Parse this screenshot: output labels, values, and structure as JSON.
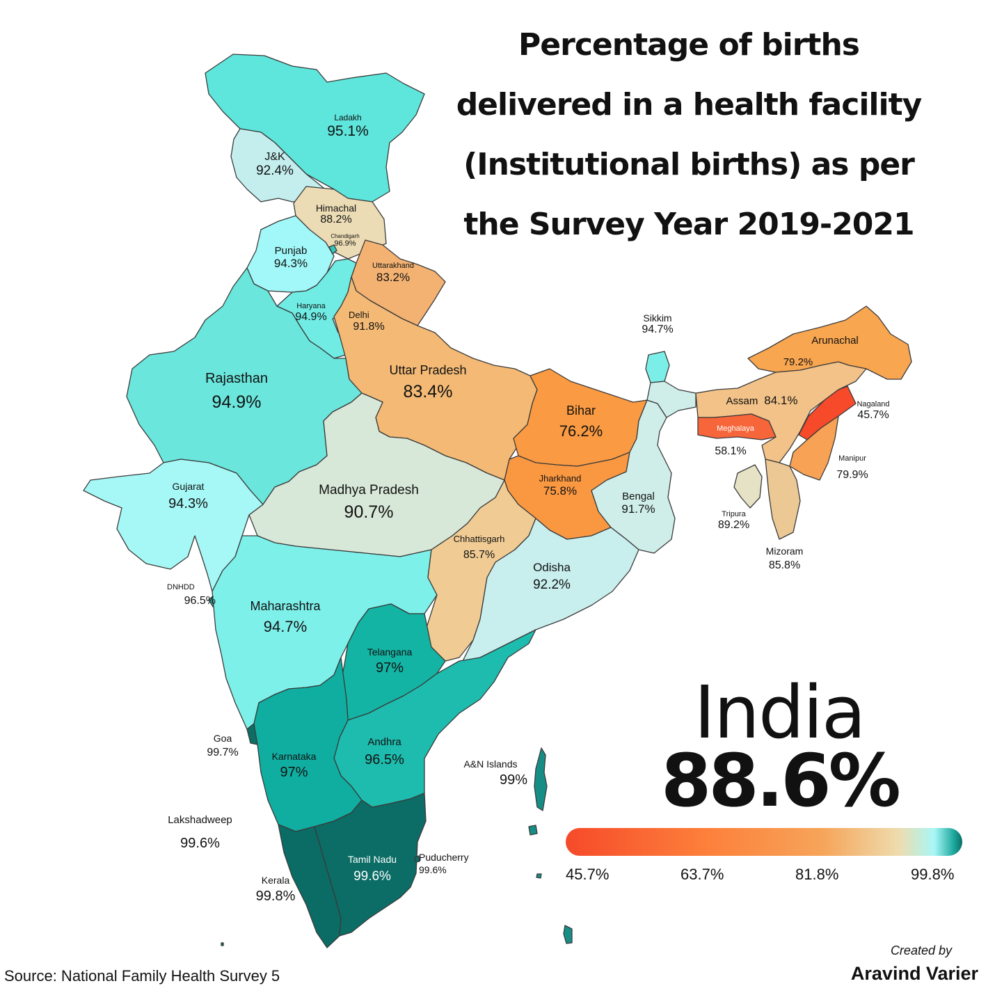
{
  "title_lines": [
    "Percentage of births",
    "delivered in a health facility",
    "(Institutional births) as per",
    "the Survey Year 2019-2021"
  ],
  "national": {
    "name": "India",
    "value": "88.6%"
  },
  "legend": {
    "ticks": [
      "45.7%",
      "63.7%",
      "81.8%",
      "99.8%"
    ],
    "colors": [
      "#f64a2a",
      "#fd7f3a",
      "#f6a55a",
      "#eedcae",
      "#a8f7f7",
      "#1aa59a",
      "#0b6d64"
    ]
  },
  "source": "Source: National Family Health Survey 5",
  "credit": {
    "line1": "Created by",
    "line2": "Aravind Varier"
  },
  "regions": {
    "ladakh": {
      "name": "Ladakh",
      "value": "95.1%",
      "color": "#5ee6dc"
    },
    "jk": {
      "name": "J&K",
      "value": "92.4%",
      "color": "#c4eeee"
    },
    "himachal": {
      "name": "Himachal",
      "value": "88.2%",
      "color": "#ecdcb5"
    },
    "chandigarh": {
      "name": "Chandigarh",
      "value": "96.9%",
      "color": "#36c4b8"
    },
    "punjab": {
      "name": "Punjab",
      "value": "94.3%",
      "color": "#a2f8f8"
    },
    "uttarakhand": {
      "name": "Uttarakhand",
      "value": "83.2%",
      "color": "#f3b272"
    },
    "haryana": {
      "name": "Haryana",
      "value": "94.9%",
      "color": "#70ece4"
    },
    "delhi": {
      "name": "Delhi",
      "value": "91.8%",
      "color": "#d6eee8"
    },
    "rajasthan": {
      "name": "Rajasthan",
      "value": "94.9%",
      "color": "#6ae6dc"
    },
    "uttar_pradesh": {
      "name": "Uttar Pradesh",
      "value": "83.4%",
      "color": "#f3b975"
    },
    "bihar": {
      "name": "Bihar",
      "value": "76.2%",
      "color": "#fa9a42"
    },
    "sikkim": {
      "name": "Sikkim",
      "value": "94.7%",
      "color": "#7ceee8"
    },
    "arunachal": {
      "name": "Arunachal",
      "value": "79.2%",
      "color": "#f8a650"
    },
    "assam": {
      "name": "Assam",
      "value": "84.1%",
      "color": "#f2c288"
    },
    "nagaland": {
      "name": "Nagaland",
      "value": "45.7%",
      "color": "#f64a2a"
    },
    "meghalaya": {
      "name": "Meghalaya",
      "value": "58.1%",
      "color": "#f7663a"
    },
    "manipur": {
      "name": "Manipur",
      "value": "79.9%",
      "color": "#f7a254"
    },
    "tripura": {
      "name": "Tripura",
      "value": "89.2%",
      "color": "#e6e2c6"
    },
    "mizoram": {
      "name": "Mizoram",
      "value": "85.8%",
      "color": "#ecc894"
    },
    "gujarat": {
      "name": "Gujarat",
      "value": "94.3%",
      "color": "#a6f8f6"
    },
    "madhya_pradesh": {
      "name": "Madhya Pradesh",
      "value": "90.7%",
      "color": "#d8e8d8"
    },
    "jharkhand": {
      "name": "Jharkhand",
      "value": "75.8%",
      "color": "#fa9842"
    },
    "bengal": {
      "name": "Bengal",
      "value": "91.7%",
      "color": "#cfeeea"
    },
    "chhattisgarh": {
      "name": "Chhattisgarh",
      "value": "85.7%",
      "color": "#f0cc94"
    },
    "odisha": {
      "name": "Odisha",
      "value": "92.2%",
      "color": "#c8eeee"
    },
    "dnhdd": {
      "name": "DNHDD",
      "value": "96.5%",
      "color": "#2ab4a8"
    },
    "maharashtra": {
      "name": "Maharashtra",
      "value": "94.7%",
      "color": "#7ef0ea"
    },
    "telangana": {
      "name": "Telangana",
      "value": "97%",
      "color": "#13b4a4"
    },
    "goa": {
      "name": "Goa",
      "value": "99.7%",
      "color": "#0e6e66"
    },
    "karnataka": {
      "name": "Karnataka",
      "value": "97%",
      "color": "#10aea0"
    },
    "andhra": {
      "name": "Andhra",
      "value": "96.5%",
      "color": "#1ebcae"
    },
    "an_islands": {
      "name": "A&N Islands",
      "value": "99%",
      "color": "#168e86"
    },
    "lakshadweep": {
      "name": "Lakshadweep",
      "value": "99.6%",
      "color": "#0c7068"
    },
    "kerala": {
      "name": "Kerala",
      "value": "99.8%",
      "color": "#0a6c64"
    },
    "tamil_nadu": {
      "name": "Tamil Nadu",
      "value": "99.6%",
      "color": "#0b6d66"
    },
    "puducherry": {
      "name": "Puducherry",
      "value": "99.6%",
      "color": "#0b6d66"
    }
  }
}
